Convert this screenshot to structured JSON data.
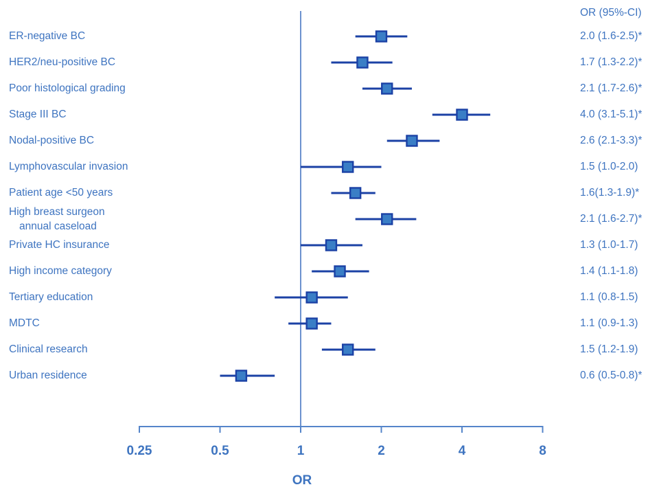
{
  "header": {
    "or_ci_label": "OR (95%-CI)"
  },
  "chart_data": {
    "type": "forest",
    "x_axis": {
      "label": "OR",
      "scale": "log2",
      "ticks": [
        0.25,
        0.5,
        1,
        2,
        4,
        8
      ],
      "tick_labels": [
        "0.25",
        "0.5",
        "1",
        "2",
        "4",
        "8"
      ],
      "range": [
        0.25,
        8
      ],
      "reference_line": 1
    },
    "value_column_header": "OR (95%-CI)",
    "rows": [
      {
        "label": "ER-negative BC",
        "or": 2.0,
        "ci_low": 1.6,
        "ci_high": 2.5,
        "display": "2.0 (1.6-2.5)*",
        "significant": true
      },
      {
        "label": "HER2/neu-positive BC",
        "or": 1.7,
        "ci_low": 1.3,
        "ci_high": 2.2,
        "display": "1.7 (1.3-2.2)*",
        "significant": true
      },
      {
        "label": "Poor histological grading",
        "or": 2.1,
        "ci_low": 1.7,
        "ci_high": 2.6,
        "display": "2.1 (1.7-2.6)*",
        "significant": true
      },
      {
        "label": "Stage III BC",
        "or": 4.0,
        "ci_low": 3.1,
        "ci_high": 5.1,
        "display": "4.0 (3.1-5.1)*",
        "significant": true
      },
      {
        "label": "Nodal-positive BC",
        "or": 2.6,
        "ci_low": 2.1,
        "ci_high": 3.3,
        "display": "2.6 (2.1-3.3)*",
        "significant": true
      },
      {
        "label": "Lymphovascular invasion",
        "or": 1.5,
        "ci_low": 1.0,
        "ci_high": 2.0,
        "display": "1.5 (1.0-2.0)",
        "significant": false
      },
      {
        "label": "Patient age <50 years",
        "or": 1.6,
        "ci_low": 1.3,
        "ci_high": 1.9,
        "display": "1.6(1.3-1.9)*",
        "significant": true
      },
      {
        "label": "High breast surgeon",
        "label_line2": "annual caseload",
        "or": 2.1,
        "ci_low": 1.6,
        "ci_high": 2.7,
        "display": "2.1 (1.6-2.7)*",
        "significant": true
      },
      {
        "label": "Private HC insurance",
        "or": 1.3,
        "ci_low": 1.0,
        "ci_high": 1.7,
        "display": "1.3 (1.0-1.7)",
        "significant": false
      },
      {
        "label": "High income category",
        "or": 1.4,
        "ci_low": 1.1,
        "ci_high": 1.8,
        "display": "1.4 (1.1-1.8)",
        "significant": false
      },
      {
        "label": "Tertiary education",
        "or": 1.1,
        "ci_low": 0.8,
        "ci_high": 1.5,
        "display": "1.1 (0.8-1.5)",
        "significant": false
      },
      {
        "label": "MDTC",
        "or": 1.1,
        "ci_low": 0.9,
        "ci_high": 1.3,
        "display": "1.1 (0.9-1.3)",
        "significant": false
      },
      {
        "label": "Clinical research",
        "or": 1.5,
        "ci_low": 1.2,
        "ci_high": 1.9,
        "display": "1.5 (1.2-1.9)",
        "significant": false
      },
      {
        "label": "Urban residence",
        "or": 0.6,
        "ci_low": 0.5,
        "ci_high": 0.8,
        "display": "0.6 (0.5-0.8)*",
        "significant": true
      }
    ]
  },
  "colors": {
    "text": "#3E74C0",
    "axis_line": "#5585CA",
    "reference_line": "#6C92CF",
    "ci_line": "#1B41A5",
    "marker_fill": "#3A7EC6",
    "marker_border": "#1B41A5"
  }
}
